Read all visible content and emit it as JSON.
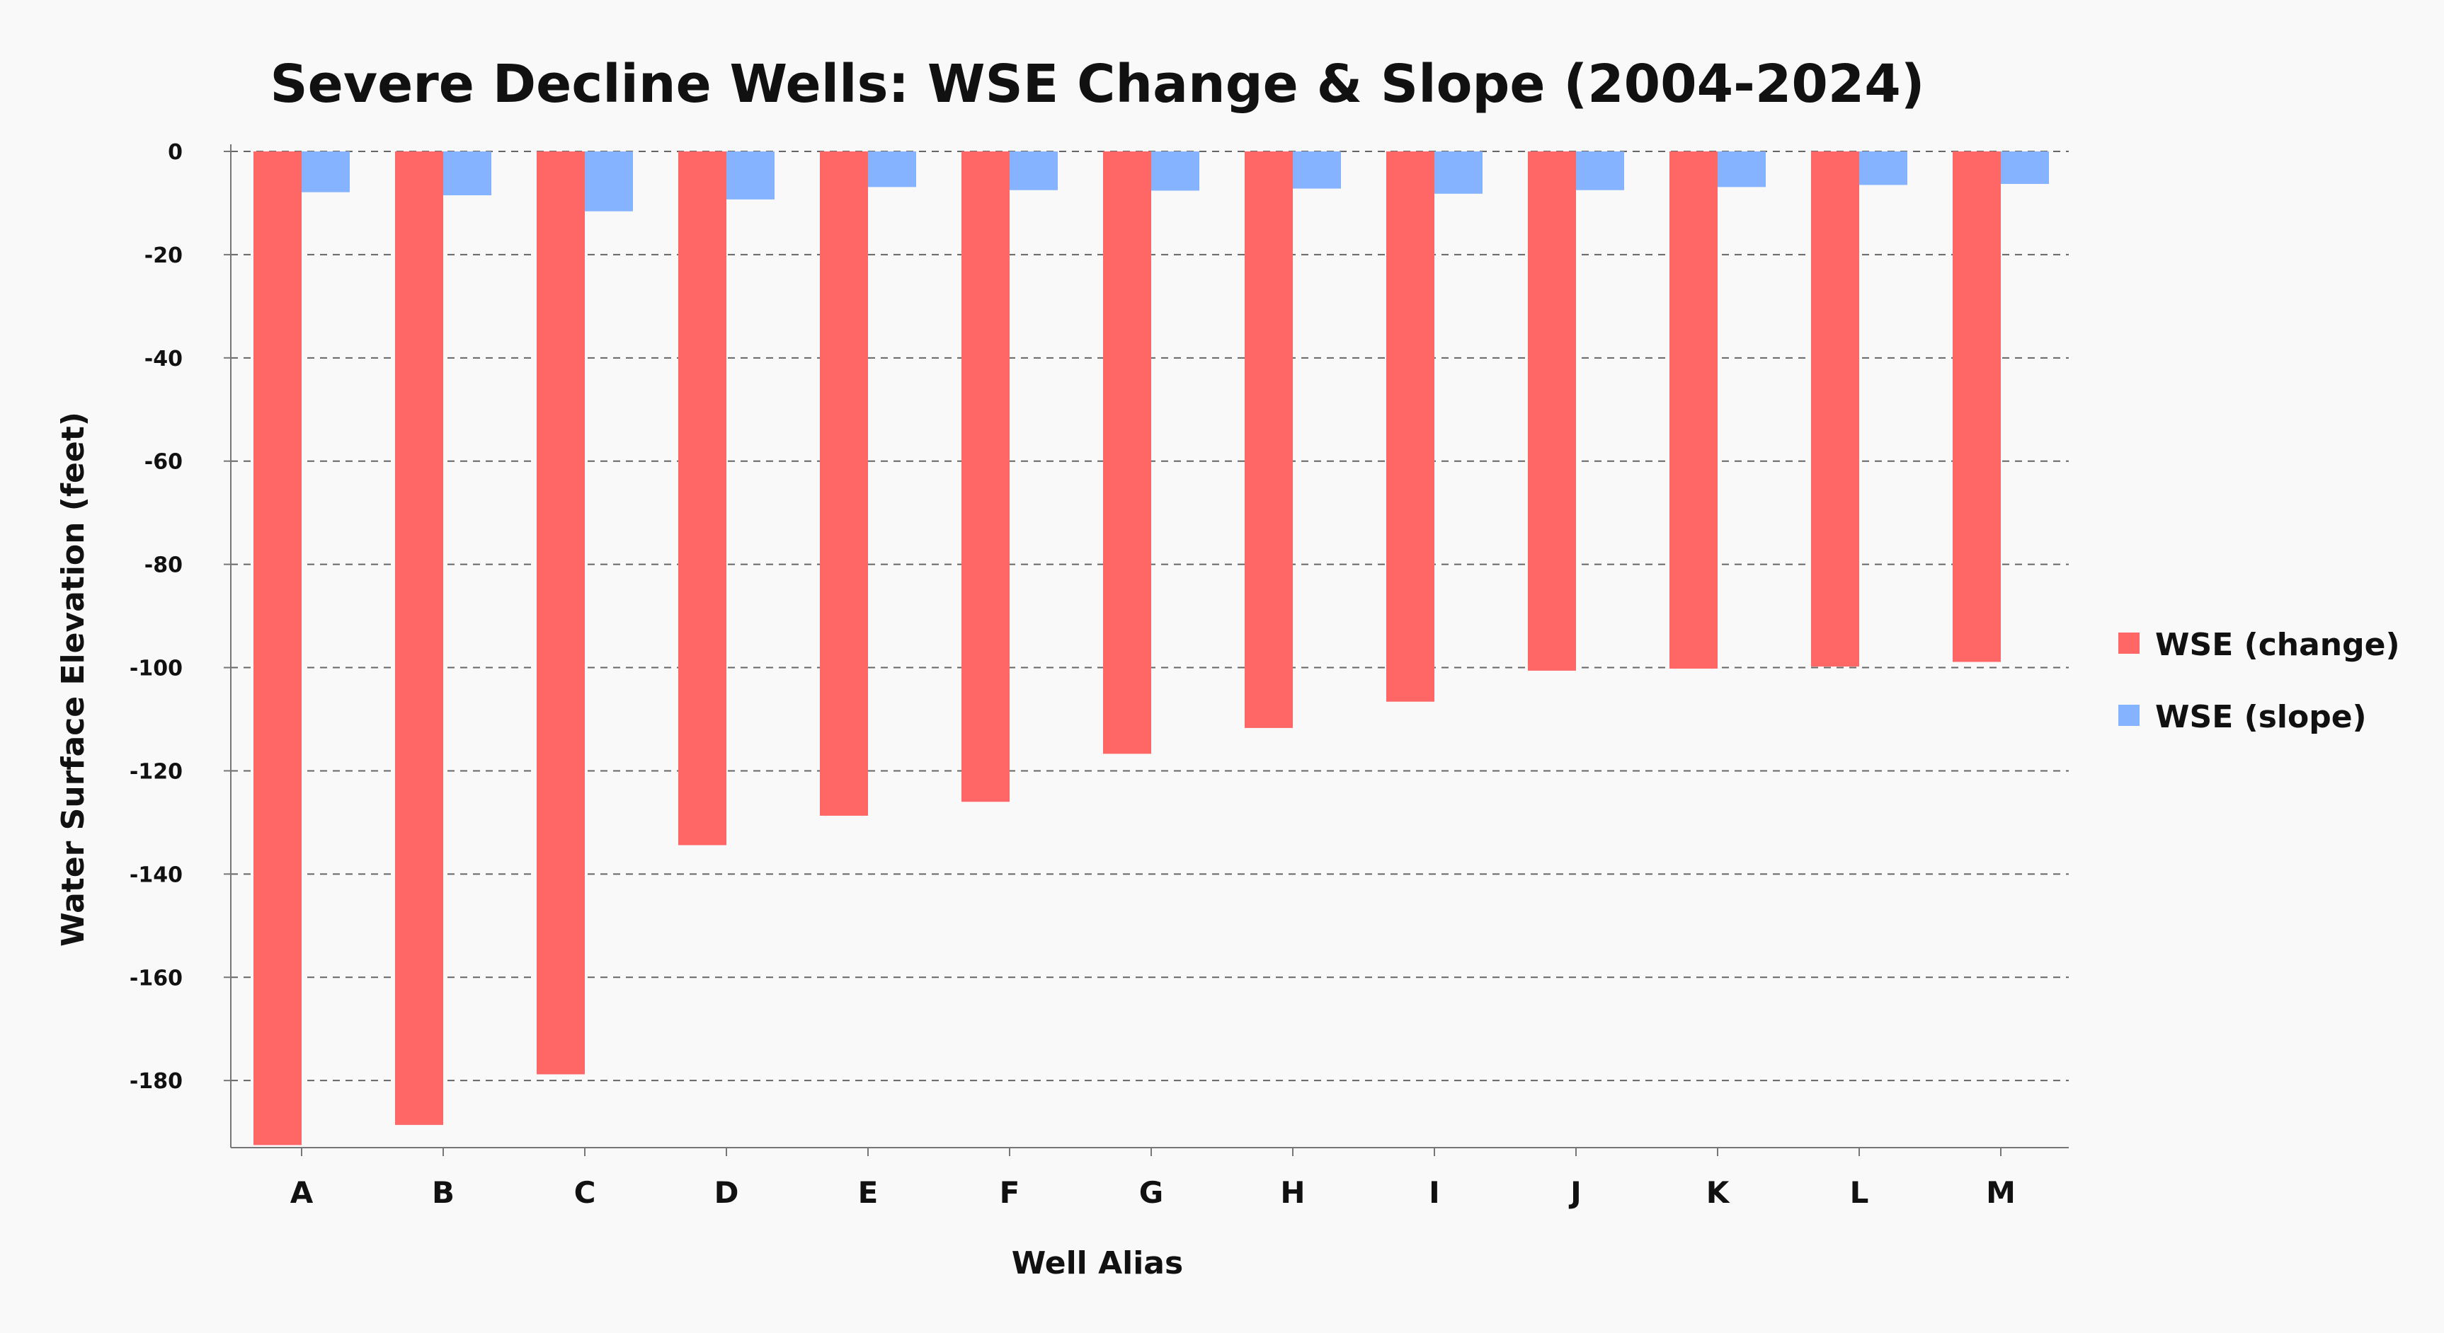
{
  "chart_data": {
    "type": "bar",
    "title": "Severe Decline Wells: WSE Change & Slope (2004-2024)",
    "xlabel": "Well Alias",
    "ylabel": "Water Surface Elevation (feet)",
    "categories": [
      "A",
      "B",
      "C",
      "D",
      "E",
      "F",
      "G",
      "H",
      "I",
      "J",
      "K",
      "L",
      "M"
    ],
    "series": [
      {
        "name": "WSE (change)",
        "color": "#ff6666",
        "values": [
          -192.5,
          -188.6,
          -178.8,
          -134.4,
          -128.7,
          -126.0,
          -116.7,
          -111.7,
          -106.6,
          -100.6,
          -100.2,
          -99.8,
          -98.9
        ]
      },
      {
        "name": "WSE (slope)",
        "color": "#85b3ff",
        "values": [
          -7.9,
          -8.5,
          -11.6,
          -9.3,
          -6.9,
          -7.5,
          -7.6,
          -7.2,
          -8.2,
          -7.5,
          -6.9,
          -6.5,
          -6.3
        ]
      }
    ],
    "ylim": [
      -193,
      0
    ],
    "yticks": [
      0,
      -20,
      -40,
      -60,
      -80,
      -100,
      -120,
      -140,
      -160,
      -180
    ],
    "grid": true,
    "legend_position": "right"
  }
}
